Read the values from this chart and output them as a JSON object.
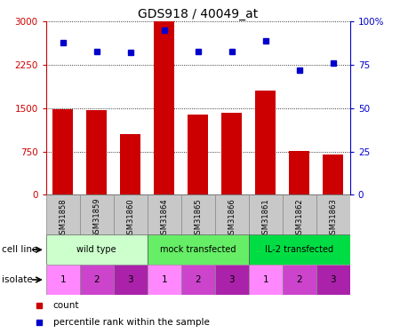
{
  "title": "GDS918 / 40049_at",
  "samples": [
    "GSM31858",
    "GSM31859",
    "GSM31860",
    "GSM31864",
    "GSM31865",
    "GSM31866",
    "GSM31861",
    "GSM31862",
    "GSM31863"
  ],
  "counts": [
    1480,
    1460,
    1050,
    3000,
    1390,
    1420,
    1800,
    760,
    700
  ],
  "percentiles": [
    88,
    83,
    82,
    95,
    83,
    83,
    89,
    72,
    76
  ],
  "ylim_left": [
    0,
    3000
  ],
  "ylim_right": [
    0,
    100
  ],
  "yticks_left": [
    0,
    750,
    1500,
    2250,
    3000
  ],
  "yticks_right": [
    0,
    25,
    50,
    75,
    100
  ],
  "ytick_right_labels": [
    "0",
    "25",
    "50",
    "75",
    "100%"
  ],
  "cell_lines": [
    {
      "label": "wild type",
      "color": "#ccffcc",
      "span": [
        0,
        3
      ]
    },
    {
      "label": "mock transfected",
      "color": "#66ee66",
      "span": [
        3,
        6
      ]
    },
    {
      "label": "IL-2 transfected",
      "color": "#00dd44",
      "span": [
        6,
        9
      ]
    }
  ],
  "isolates": [
    "1",
    "2",
    "3",
    "1",
    "2",
    "3",
    "1",
    "2",
    "3"
  ],
  "bar_color": "#cc0000",
  "dot_color": "#0000cc",
  "sample_bg_color": "#c8c8c8",
  "left_label_color": "#cc0000",
  "right_label_color": "#0000cc",
  "iso_colors": [
    "#ff88ff",
    "#cc44cc",
    "#aa22aa"
  ]
}
